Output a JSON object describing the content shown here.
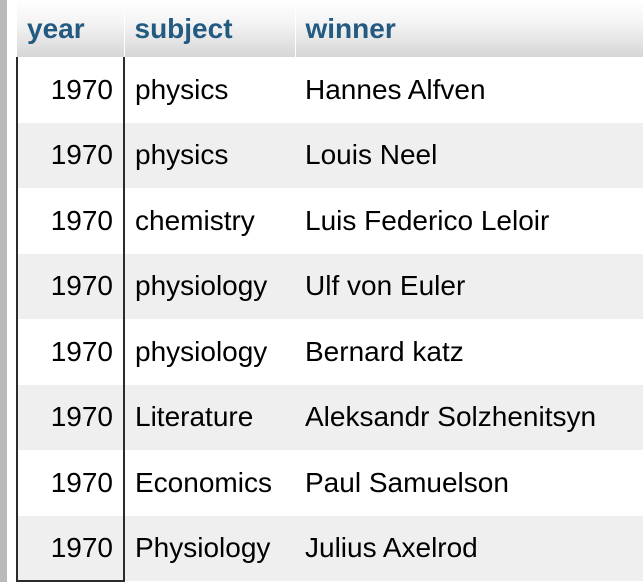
{
  "table": {
    "columns": [
      "year",
      "subject",
      "winner"
    ],
    "rows": [
      {
        "year": "1970",
        "subject": "physics",
        "winner": "Hannes Alfven"
      },
      {
        "year": "1970",
        "subject": "physics",
        "winner": "Louis Neel"
      },
      {
        "year": "1970",
        "subject": "chemistry",
        "winner": "Luis Federico Leloir"
      },
      {
        "year": "1970",
        "subject": "physiology",
        "winner": "Ulf von Euler"
      },
      {
        "year": "1970",
        "subject": "physiology",
        "winner": "Bernard katz"
      },
      {
        "year": "1970",
        "subject": "Literature",
        "winner": "Aleksandr Solzhenitsyn"
      },
      {
        "year": "1970",
        "subject": "Economics",
        "winner": "Paul Samuelson"
      },
      {
        "year": "1970",
        "subject": "Physiology",
        "winner": "Julius Axelrod"
      }
    ]
  },
  "colors": {
    "header_text": "#235a81",
    "row_alt": "#efefef",
    "row": "#ffffff"
  }
}
